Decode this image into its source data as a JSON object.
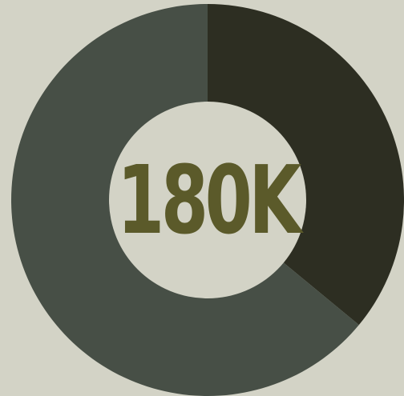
{
  "background_color": "#d3d3c6",
  "center_fill_color": "#d3d3c6",
  "center_label": "180K",
  "center_label_color": "#5b5a2a",
  "chart_data": {
    "type": "pie",
    "variant": "donut",
    "title": "",
    "center_text": "180K",
    "start_angle_deg": 0,
    "direction": "clockwise",
    "slices": [
      {
        "label": "",
        "value": 36,
        "color": "#2d2e22"
      },
      {
        "label": "",
        "value": 64,
        "color": "#474f46"
      }
    ]
  }
}
